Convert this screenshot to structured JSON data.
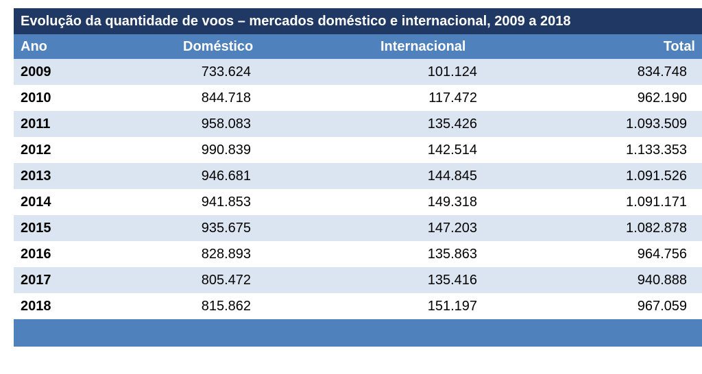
{
  "chart_data": {
    "type": "table",
    "title": "Evolução da quantidade de voos – mercados doméstico e internacional, 2009 a 2018",
    "columns": [
      "Ano",
      "Doméstico",
      "Internacional",
      "Total"
    ],
    "rows": [
      [
        "2009",
        "733.624",
        "101.124",
        "834.748"
      ],
      [
        "2010",
        "844.718",
        "117.472",
        "962.190"
      ],
      [
        "2011",
        "958.083",
        "135.426",
        "1.093.509"
      ],
      [
        "2012",
        "990.839",
        "142.514",
        "1.133.353"
      ],
      [
        "2013",
        "946.681",
        "144.845",
        "1.091.526"
      ],
      [
        "2014",
        "941.853",
        "149.318",
        "1.091.171"
      ],
      [
        "2015",
        "935.675",
        "147.203",
        "1.082.878"
      ],
      [
        "2016",
        "828.893",
        "135.863",
        "964.756"
      ],
      [
        "2017",
        "805.472",
        "135.416",
        "940.888"
      ],
      [
        "2018",
        "815.862",
        "151.197",
        "967.059"
      ]
    ]
  },
  "colors": {
    "title_bg": "#1f3864",
    "header_bg": "#4f81bd",
    "band_bg": "#dbe5f1"
  }
}
